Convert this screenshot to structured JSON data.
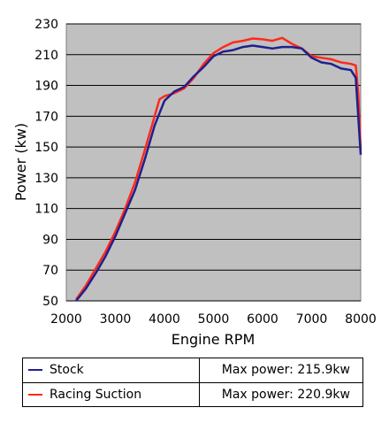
{
  "chart_data": {
    "type": "line",
    "title": "",
    "xlabel": "Engine RPM",
    "ylabel": "Power (kw)",
    "xlim": [
      2000,
      8000
    ],
    "ylim": [
      50,
      230
    ],
    "xticks": [
      2000,
      3000,
      4000,
      5000,
      6000,
      7000,
      8000
    ],
    "yticks": [
      50,
      70,
      90,
      110,
      130,
      150,
      170,
      190,
      210,
      230
    ],
    "grid": "horizontal",
    "plot_background": "#c0c0c0",
    "series": [
      {
        "name": "Stock",
        "color": "#1f1f8f",
        "max_power_label": "Max power: 215.9kw",
        "points": [
          [
            2200,
            50
          ],
          [
            2400,
            58
          ],
          [
            2600,
            68
          ],
          [
            2800,
            79
          ],
          [
            3000,
            92
          ],
          [
            3200,
            107
          ],
          [
            3400,
            122
          ],
          [
            3600,
            142
          ],
          [
            3800,
            164
          ],
          [
            4000,
            180
          ],
          [
            4200,
            186
          ],
          [
            4400,
            189
          ],
          [
            4600,
            196
          ],
          [
            4800,
            202
          ],
          [
            5000,
            209
          ],
          [
            5200,
            212
          ],
          [
            5400,
            213
          ],
          [
            5600,
            215
          ],
          [
            5800,
            215.9
          ],
          [
            6000,
            215
          ],
          [
            6200,
            214
          ],
          [
            6400,
            215
          ],
          [
            6600,
            215
          ],
          [
            6800,
            214
          ],
          [
            7000,
            208
          ],
          [
            7200,
            205
          ],
          [
            7400,
            204
          ],
          [
            7600,
            201
          ],
          [
            7800,
            200
          ],
          [
            7900,
            195
          ],
          [
            7950,
            170
          ],
          [
            8000,
            145
          ]
        ]
      },
      {
        "name": "Racing Suction",
        "color": "#ff2a1a",
        "max_power_label": "Max power: 220.9kw",
        "points": [
          [
            2200,
            51
          ],
          [
            2400,
            60
          ],
          [
            2600,
            71
          ],
          [
            2800,
            82
          ],
          [
            3000,
            95
          ],
          [
            3200,
            110
          ],
          [
            3400,
            127
          ],
          [
            3600,
            148
          ],
          [
            3800,
            170
          ],
          [
            3900,
            181
          ],
          [
            4000,
            183
          ],
          [
            4200,
            185
          ],
          [
            4400,
            188
          ],
          [
            4600,
            195
          ],
          [
            4800,
            204
          ],
          [
            5000,
            211
          ],
          [
            5200,
            215
          ],
          [
            5400,
            218
          ],
          [
            5600,
            219
          ],
          [
            5800,
            220.5
          ],
          [
            6000,
            220
          ],
          [
            6200,
            219
          ],
          [
            6400,
            220.9
          ],
          [
            6600,
            217
          ],
          [
            6800,
            214
          ],
          [
            7000,
            209
          ],
          [
            7200,
            208
          ],
          [
            7400,
            207
          ],
          [
            7600,
            205
          ],
          [
            7800,
            204
          ],
          [
            7900,
            203
          ],
          [
            7950,
            185
          ],
          [
            8000,
            148
          ]
        ]
      }
    ]
  }
}
